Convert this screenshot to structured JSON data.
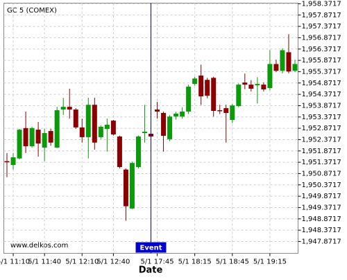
{
  "chart_data": {
    "type": "candlestick",
    "title": "GC 5 (COMEX)",
    "x_label": "Date",
    "watermark": "www.delkos.com",
    "annotation": {
      "label": "Event",
      "category_index": 23
    },
    "categories": [
      null,
      "5/1 11:10",
      null,
      null,
      null,
      null,
      "5/1 11:40",
      null,
      null,
      null,
      null,
      null,
      "5/1 12:10",
      null,
      null,
      null,
      null,
      "5/1 12:40",
      null,
      null,
      null,
      null,
      null,
      null,
      "5/1 17:45",
      null,
      null,
      null,
      null,
      null,
      "5/1 18:15",
      null,
      null,
      null,
      null,
      null,
      "5/1 18:45",
      null,
      null,
      null,
      null,
      null,
      "5/1 19:15",
      null,
      null,
      null,
      null
    ],
    "open": [
      1951.42,
      1951.25,
      1951.54,
      1952.88,
      1952.08,
      1952.81,
      1952.02,
      1952.75,
      1952.02,
      1953.7,
      1953.82,
      1953.7,
      1952.91,
      1952.48,
      1953.91,
      1952.48,
      1952.84,
      1953.21,
      1952.51,
      1951.05,
      1949.33,
      1951.16,
      1952.66,
      1952.63,
      1953.7,
      1953.55,
      1952.39,
      1953.39,
      1953.39,
      1953.61,
      1954.83,
      1955.2,
      1955.01,
      1955.1,
      1953.67,
      1953.76,
      1953.24,
      1953.85,
      1954.89,
      1954.8,
      1954.77,
      1954.8,
      1954.65,
      1955.71,
      1955.41,
      1956.23,
      1955.41
    ],
    "high": [
      1951.78,
      1951.78,
      1952.85,
      1953.61,
      1952.94,
      1953.15,
      1952.85,
      1952.85,
      1953.82,
      1954.22,
      1954.62,
      1953.76,
      1953.3,
      1954.22,
      1954.22,
      1953.0,
      1953.3,
      1953.24,
      1952.55,
      1951.1,
      1951.4,
      1952.55,
      1953.91,
      1952.7,
      1954.04,
      1953.61,
      1953.46,
      1953.6,
      1953.8,
      1954.8,
      1955.15,
      1955.68,
      1955.1,
      1955.15,
      1953.91,
      1953.91,
      1953.95,
      1954.85,
      1955.29,
      1955.0,
      1955.13,
      1954.9,
      1956.32,
      1955.9,
      1956.4,
      1957.03,
      1955.9
    ],
    "low": [
      1950.71,
      1951.05,
      1951.5,
      1951.78,
      1952.02,
      1951.62,
      1951.42,
      1952.1,
      1952.0,
      1953.46,
      1953.3,
      1952.85,
      1952.24,
      1951.54,
      1951.93,
      1952.4,
      1951.84,
      1952.55,
      1951.1,
      1948.79,
      1949.3,
      1951.1,
      1952.24,
      1952.45,
      1953.3,
      1951.84,
      1952.3,
      1953.25,
      1953.3,
      1953.5,
      1954.75,
      1953.9,
      1954.2,
      1953.39,
      1953.5,
      1952.24,
      1953.1,
      1953.8,
      1954.6,
      1954.5,
      1953.97,
      1954.5,
      1954.55,
      1955.35,
      1955.3,
      1955.3,
      1955.35
    ],
    "close": [
      1951.37,
      1951.59,
      1952.81,
      1952.08,
      1952.88,
      1952.2,
      1952.66,
      1952.24,
      1953.67,
      1953.82,
      1953.7,
      1952.91,
      1952.48,
      1953.91,
      1952.24,
      1952.94,
      1953.03,
      1952.6,
      1951.16,
      1949.43,
      1951.34,
      1952.51,
      1952.72,
      1952.51,
      1953.61,
      1952.54,
      1953.39,
      1953.52,
      1953.61,
      1954.71,
      1955.07,
      1954.28,
      1954.31,
      1953.64,
      1953.64,
      1953.55,
      1953.88,
      1954.8,
      1954.8,
      1954.62,
      1954.83,
      1954.59,
      1955.71,
      1955.41,
      1956.32,
      1955.38,
      1955.71
    ],
    "up_color": "#0a9a0a",
    "down_color": "#8b0000",
    "annotation_color": "#0000cc",
    "grid": true,
    "ylim": [
      1947.35,
      1958.4
    ],
    "yticks": [
      {
        "value": 1947.8717,
        "label": "1,947.8717"
      },
      {
        "value": 1948.3717,
        "label": "1,948.3717"
      },
      {
        "value": 1948.8717,
        "label": "1,948.8717"
      },
      {
        "value": 1949.3717,
        "label": "1,949.3717"
      },
      {
        "value": 1949.8717,
        "label": "1,949.8717"
      },
      {
        "value": 1950.3717,
        "label": "1,950.3717"
      },
      {
        "value": 1950.8717,
        "label": "1,950.8717"
      },
      {
        "value": 1951.3717,
        "label": "1,951.3717"
      },
      {
        "value": 1951.8717,
        "label": "1,951.8717"
      },
      {
        "value": 1952.3717,
        "label": "1,952.3717"
      },
      {
        "value": 1952.8717,
        "label": "1,952.8717"
      },
      {
        "value": 1953.3717,
        "label": "1,953.3717"
      },
      {
        "value": 1953.8717,
        "label": "1,953.8717"
      },
      {
        "value": 1954.3717,
        "label": "1,954.3717"
      },
      {
        "value": 1954.8717,
        "label": "1,954.8717"
      },
      {
        "value": 1955.3717,
        "label": "1,955.3717"
      },
      {
        "value": 1955.8717,
        "label": "1,955.8717"
      },
      {
        "value": 1956.3717,
        "label": "1,956.3717"
      },
      {
        "value": 1956.8717,
        "label": "1,956.8717"
      },
      {
        "value": 1957.3717,
        "label": "1,957.3717"
      },
      {
        "value": 1957.8717,
        "label": "1,957.8717"
      },
      {
        "value": 1958.3717,
        "label": "1,958.3717"
      }
    ]
  }
}
